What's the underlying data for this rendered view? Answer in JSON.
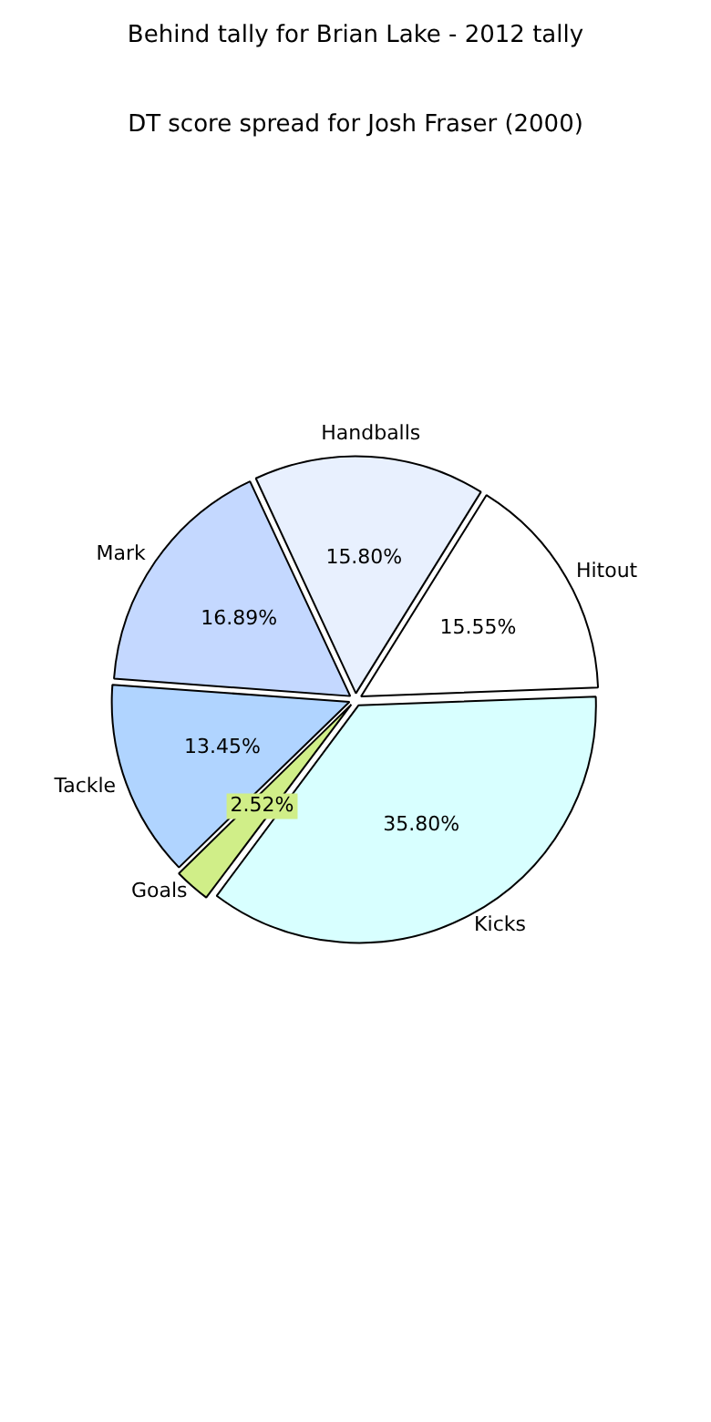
{
  "chart_data": {
    "type": "pie",
    "title": "DT score spread for Josh Fraser (2000)",
    "annotations": [
      "Behind tally for Brian Lake - 2012 tally"
    ],
    "categories": [
      "Handballs",
      "Hitout",
      "Kicks",
      "Goals",
      "Tackle",
      "Mark"
    ],
    "values": [
      15.8,
      15.55,
      35.8,
      2.52,
      13.45,
      16.89
    ],
    "value_labels": [
      "15.80%",
      "15.55%",
      "35.80%",
      "2.52%",
      "13.45%",
      "16.89%"
    ],
    "colors": [
      "#e8f0fe",
      "#ffffff",
      "#d8ffff",
      "#d0ee88",
      "#b0d4ff",
      "#c4d8ff"
    ],
    "legend": false
  }
}
